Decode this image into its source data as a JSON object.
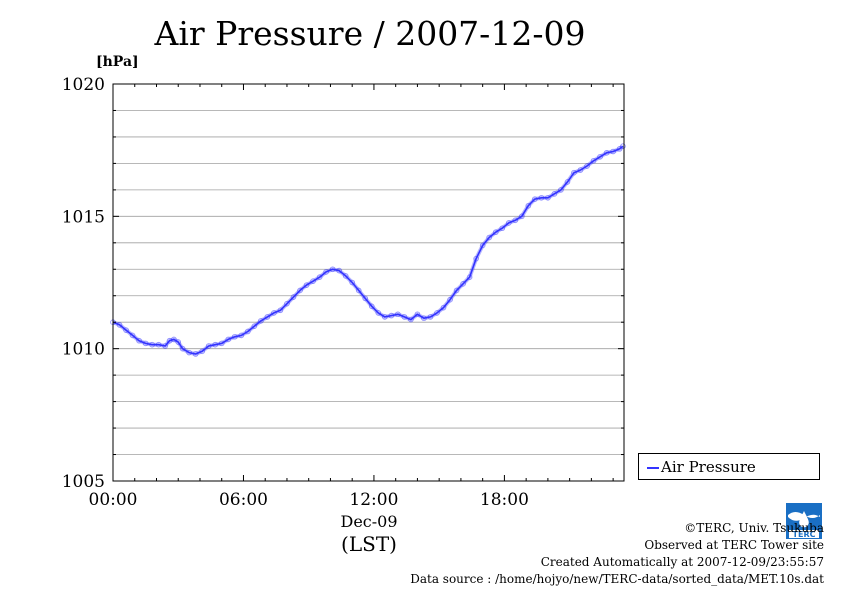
{
  "chart_data": {
    "type": "line",
    "title": "Air Pressure / 2007-12-09",
    "ylabel": "[hPa]",
    "xlabel": "(LST)",
    "x_date_label": "Dec-09",
    "x_ticks": [
      "00:00",
      "06:00",
      "12:00",
      "18:00"
    ],
    "y_ticks": [
      "1005",
      "1010",
      "1015",
      "1020"
    ],
    "ylim": [
      1005,
      1020
    ],
    "xlim_hours": [
      0,
      23.5
    ],
    "grid": true,
    "legend_position": "right, below plot",
    "series": [
      {
        "name": "Air Pressure",
        "color": "#3333ff",
        "x_hours": [
          0,
          0.3,
          0.6,
          0.9,
          1.2,
          1.5,
          1.8,
          2.1,
          2.4,
          2.6,
          2.8,
          3.0,
          3.2,
          3.5,
          3.8,
          4.1,
          4.4,
          4.7,
          5.0,
          5.3,
          5.6,
          5.9,
          6.2,
          6.5,
          6.8,
          7.1,
          7.4,
          7.7,
          8.0,
          8.3,
          8.6,
          8.9,
          9.2,
          9.5,
          9.8,
          10.1,
          10.4,
          10.7,
          11.0,
          11.3,
          11.6,
          11.9,
          12.2,
          12.5,
          12.8,
          13.1,
          13.4,
          13.7,
          14.0,
          14.3,
          14.6,
          14.9,
          15.2,
          15.5,
          15.8,
          16.1,
          16.4,
          16.7,
          17.0,
          17.3,
          17.6,
          17.9,
          18.2,
          18.5,
          18.8,
          19.1,
          19.4,
          19.7,
          20.0,
          20.3,
          20.6,
          20.9,
          21.2,
          21.5,
          21.8,
          22.1,
          22.4,
          22.7,
          23.0,
          23.3,
          23.45
        ],
        "values": [
          1011.0,
          1010.9,
          1010.7,
          1010.5,
          1010.3,
          1010.2,
          1010.15,
          1010.15,
          1010.1,
          1010.3,
          1010.35,
          1010.25,
          1010.0,
          1009.85,
          1009.8,
          1009.9,
          1010.1,
          1010.15,
          1010.2,
          1010.35,
          1010.45,
          1010.5,
          1010.65,
          1010.85,
          1011.05,
          1011.2,
          1011.35,
          1011.45,
          1011.7,
          1011.95,
          1012.2,
          1012.4,
          1012.55,
          1012.7,
          1012.9,
          1013.0,
          1012.95,
          1012.75,
          1012.5,
          1012.2,
          1011.9,
          1011.6,
          1011.35,
          1011.2,
          1011.25,
          1011.3,
          1011.2,
          1011.1,
          1011.3,
          1011.15,
          1011.2,
          1011.35,
          1011.55,
          1011.85,
          1012.2,
          1012.45,
          1012.7,
          1013.4,
          1013.9,
          1014.2,
          1014.4,
          1014.55,
          1014.75,
          1014.85,
          1015.0,
          1015.4,
          1015.65,
          1015.7,
          1015.7,
          1015.85,
          1016.0,
          1016.3,
          1016.65,
          1016.75,
          1016.9,
          1017.1,
          1017.25,
          1017.4,
          1017.45,
          1017.55,
          1017.65
        ]
      }
    ]
  },
  "legend": {
    "label": "Air Pressure"
  },
  "footer": {
    "copyright": "©TERC, Univ. Tsukuba",
    "observed": "Observed at TERC Tower site",
    "created": "Created Automatically at 2007-12-09/23:55:57",
    "source": "Data source : /home/hojyo/new/TERC-data/sorted_data/MET.10s.dat"
  },
  "logo": {
    "text": "TERC"
  }
}
